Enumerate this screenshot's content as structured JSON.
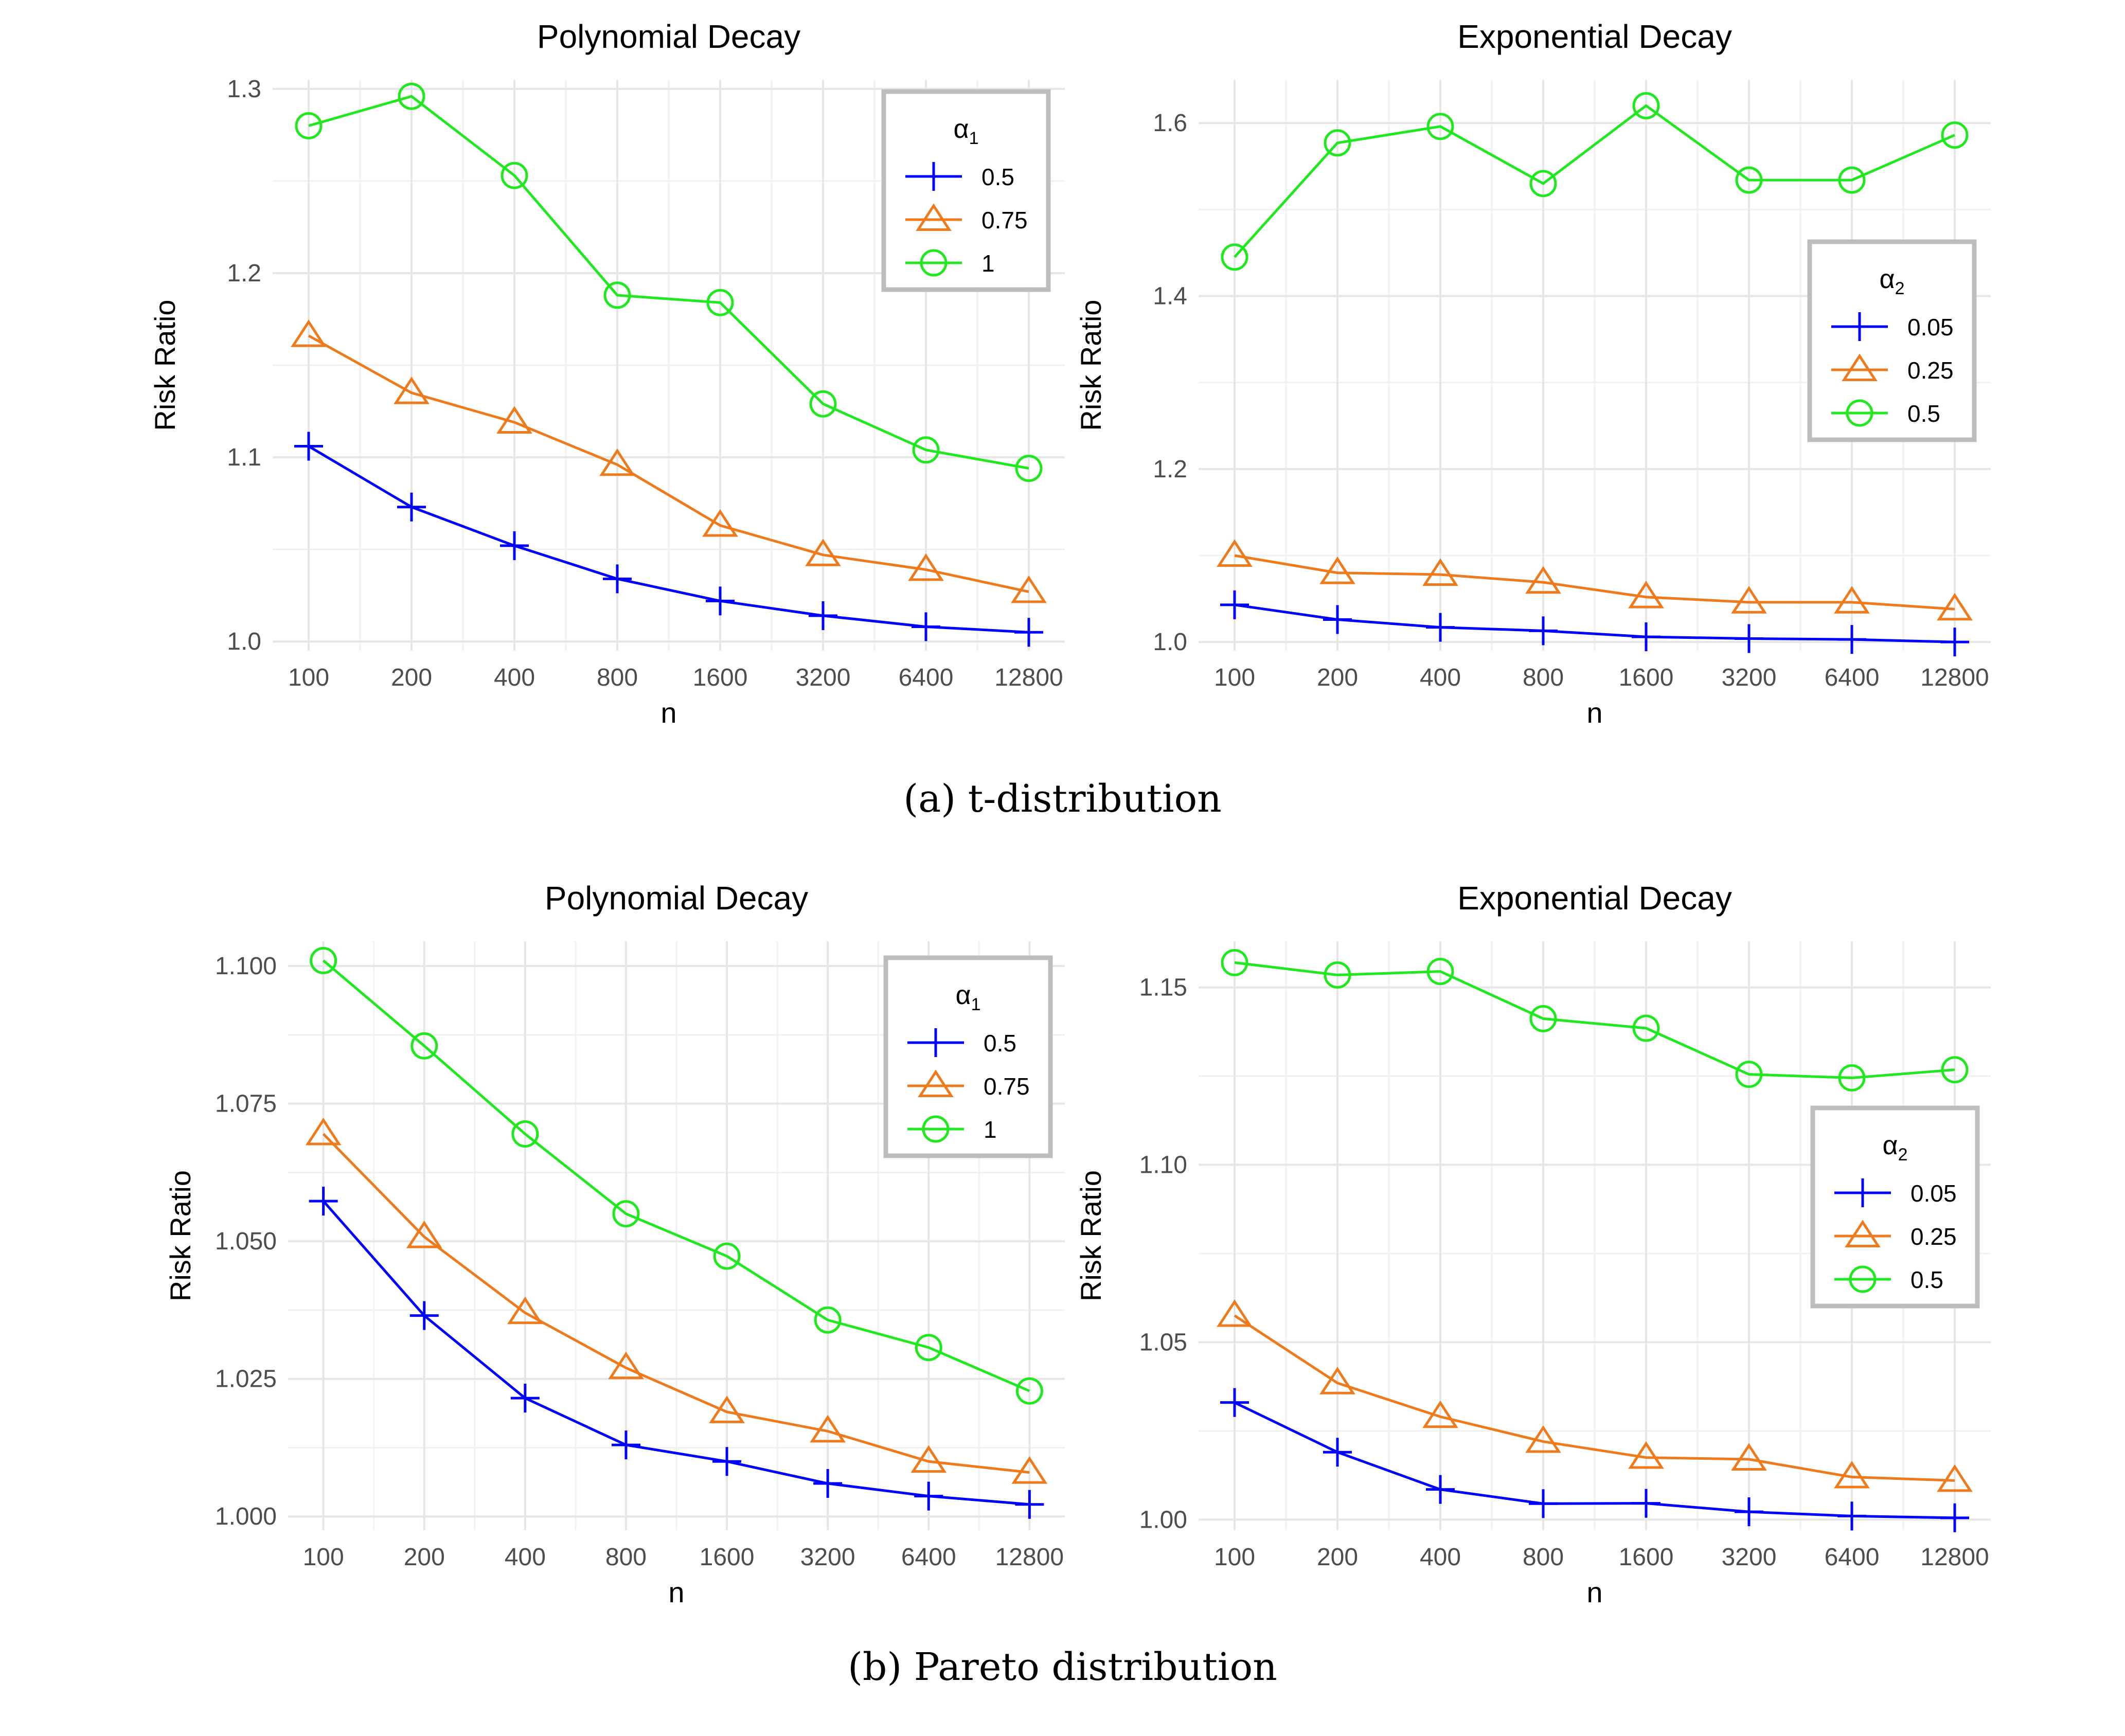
{
  "captions": {
    "a": "(a) t-distribution",
    "b": "(b) Pareto distribution"
  },
  "colors": {
    "blue": "#0000ff",
    "orange": "#ee7a1c",
    "green": "#1fe81f"
  },
  "chart_data": [
    {
      "type": "line",
      "title": "Polynomial Decay",
      "xlabel": "n",
      "ylabel": "Risk Ratio",
      "x": [
        "100",
        "200",
        "400",
        "800",
        "1600",
        "3200",
        "6400",
        "12800"
      ],
      "yticks": [
        "1.0",
        "1.1",
        "1.2",
        "1.3"
      ],
      "ylim": [
        0.995,
        1.305
      ],
      "legend": {
        "title": "α",
        "subscript": "1",
        "position": "top-right"
      },
      "series": [
        {
          "name": "0.5",
          "marker": "plus",
          "color": "#0000ff",
          "values": [
            1.106,
            1.073,
            1.052,
            1.034,
            1.022,
            1.014,
            1.008,
            1.005
          ]
        },
        {
          "name": "0.75",
          "marker": "triangle",
          "color": "#ee7a1c",
          "values": [
            1.166,
            1.135,
            1.119,
            1.096,
            1.063,
            1.047,
            1.039,
            1.027
          ]
        },
        {
          "name": "1",
          "marker": "circle",
          "color": "#1fe81f",
          "values": [
            1.28,
            1.296,
            1.253,
            1.188,
            1.184,
            1.129,
            1.104,
            1.094
          ]
        }
      ]
    },
    {
      "type": "line",
      "title": "Exponential Decay",
      "xlabel": "n",
      "ylabel": "Risk Ratio",
      "x": [
        "100",
        "200",
        "400",
        "800",
        "1600",
        "3200",
        "6400",
        "12800"
      ],
      "yticks": [
        "1.0",
        "1.2",
        "1.4",
        "1.6"
      ],
      "ylim": [
        0.99,
        1.65
      ],
      "legend": {
        "title": "α",
        "subscript": "2",
        "position": "right"
      },
      "series": [
        {
          "name": "0.05",
          "marker": "plus",
          "color": "#0000ff",
          "values": [
            1.043,
            1.026,
            1.017,
            1.013,
            1.006,
            1.004,
            1.003,
            1.0
          ]
        },
        {
          "name": "0.25",
          "marker": "triangle",
          "color": "#ee7a1c",
          "values": [
            1.1,
            1.08,
            1.078,
            1.069,
            1.052,
            1.046,
            1.046,
            1.038
          ]
        },
        {
          "name": "0.5",
          "marker": "circle",
          "color": "#1fe81f",
          "values": [
            1.445,
            1.577,
            1.596,
            1.53,
            1.62,
            1.534,
            1.534,
            1.586
          ]
        }
      ]
    },
    {
      "type": "line",
      "title": "Polynomial Decay",
      "xlabel": "n",
      "ylabel": "Risk Ratio",
      "x": [
        "100",
        "200",
        "400",
        "800",
        "1600",
        "3200",
        "6400",
        "12800"
      ],
      "yticks": [
        "1.000",
        "1.025",
        "1.050",
        "1.075",
        "1.100"
      ],
      "ylim": [
        0.9975,
        1.1045
      ],
      "legend": {
        "title": "α",
        "subscript": "1",
        "position": "top-right"
      },
      "series": [
        {
          "name": "0.5",
          "marker": "plus",
          "color": "#0000ff",
          "values": [
            1.0573,
            1.0365,
            1.0215,
            1.013,
            1.01,
            1.006,
            1.0037,
            1.0022
          ]
        },
        {
          "name": "0.75",
          "marker": "triangle",
          "color": "#ee7a1c",
          "values": [
            1.0695,
            1.0508,
            1.037,
            1.027,
            1.019,
            1.0155,
            1.01,
            1.008
          ]
        },
        {
          "name": "1",
          "marker": "circle",
          "color": "#1fe81f",
          "values": [
            1.101,
            1.0855,
            1.0695,
            1.055,
            1.0473,
            1.0357,
            1.0307,
            1.0228
          ]
        }
      ]
    },
    {
      "type": "line",
      "title": "Exponential Decay",
      "xlabel": "n",
      "ylabel": "Risk Ratio",
      "x": [
        "100",
        "200",
        "400",
        "800",
        "1600",
        "3200",
        "6400",
        "12800"
      ],
      "yticks": [
        "1.00",
        "1.05",
        "1.10",
        "1.15"
      ],
      "ylim": [
        0.997,
        1.163
      ],
      "legend": {
        "title": "α",
        "subscript": "2",
        "position": "right"
      },
      "series": [
        {
          "name": "0.05",
          "marker": "plus",
          "color": "#0000ff",
          "values": [
            1.033,
            1.019,
            1.0085,
            1.0045,
            1.0046,
            1.0022,
            1.001,
            1.0005
          ]
        },
        {
          "name": "0.25",
          "marker": "triangle",
          "color": "#ee7a1c",
          "values": [
            1.0575,
            1.0385,
            1.029,
            1.022,
            1.0175,
            1.017,
            1.012,
            1.011
          ]
        },
        {
          "name": "0.5",
          "marker": "circle",
          "color": "#1fe81f",
          "values": [
            1.157,
            1.1535,
            1.1545,
            1.1412,
            1.1385,
            1.1255,
            1.1245,
            1.1268
          ]
        }
      ]
    }
  ]
}
